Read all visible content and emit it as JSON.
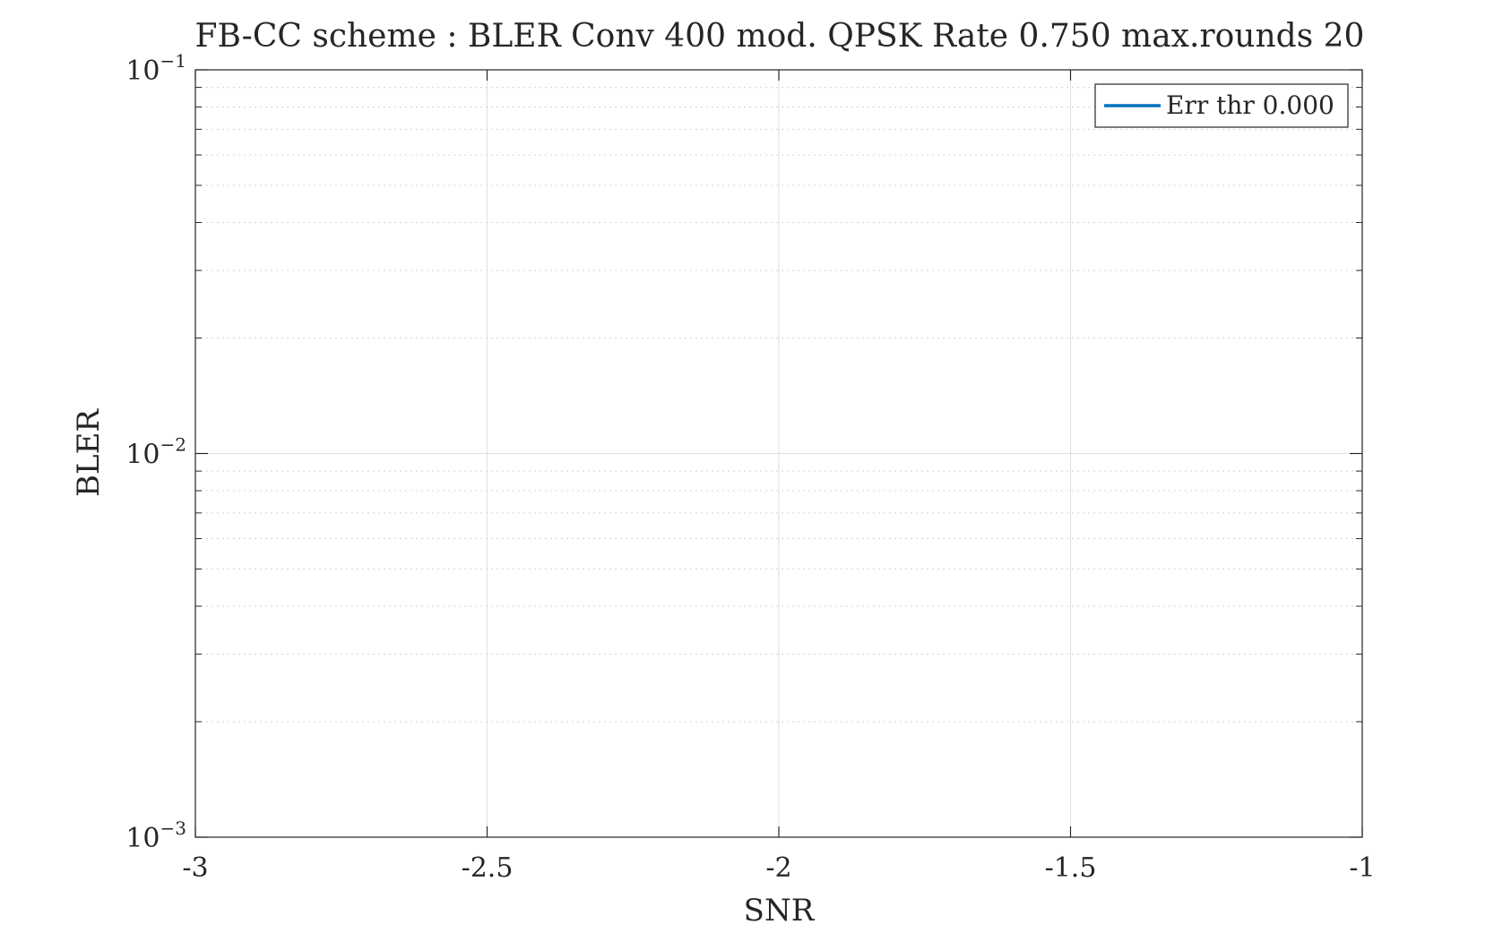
{
  "chart_data": {
    "type": "line",
    "title": "FB-CC scheme : BLER Conv 400 mod. QPSK Rate 0.750 max.rounds 20",
    "xlabel": "SNR",
    "ylabel": "BLER",
    "xlim": [
      -3,
      -1
    ],
    "ylim": [
      0.001,
      0.1
    ],
    "yscale": "log",
    "xticks": [
      -3,
      -2.5,
      -2,
      -1.5,
      -1
    ],
    "xtick_labels": [
      "-3",
      "-2.5",
      "-2",
      "-1.5",
      "-1"
    ],
    "yticks": [
      0.001,
      0.01,
      0.1
    ],
    "ytick_labels": [
      {
        "base": "10",
        "exp": "−3"
      },
      {
        "base": "10",
        "exp": "−2"
      },
      {
        "base": "10",
        "exp": "−1"
      }
    ],
    "grid": true,
    "minor_grid": true,
    "legend_position": "top-right",
    "series": [
      {
        "name": "Err thr 0.000",
        "color": "#0072BD",
        "x": [],
        "y": []
      }
    ]
  }
}
